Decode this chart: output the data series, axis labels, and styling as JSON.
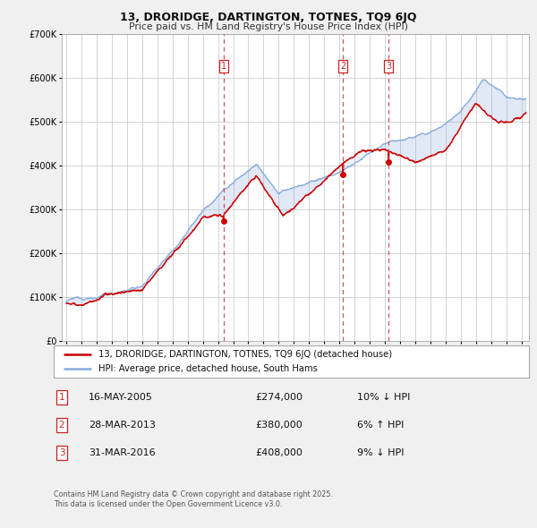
{
  "title": "13, DRORIDGE, DARTINGTON, TOTNES, TQ9 6JQ",
  "subtitle": "Price paid vs. HM Land Registry's House Price Index (HPI)",
  "legend_line1": "13, DRORIDGE, DARTINGTON, TOTNES, TQ9 6JQ (detached house)",
  "legend_line2": "HPI: Average price, detached house, South Hams",
  "footer_line1": "Contains HM Land Registry data © Crown copyright and database right 2025.",
  "footer_line2": "This data is licensed under the Open Government Licence v3.0.",
  "ylim": [
    0,
    700000
  ],
  "yticks": [
    0,
    100000,
    200000,
    300000,
    400000,
    500000,
    600000,
    700000
  ],
  "ytick_labels": [
    "£0",
    "£100K",
    "£200K",
    "£300K",
    "£400K",
    "£500K",
    "£600K",
    "£700K"
  ],
  "xlim_start": 1994.7,
  "xlim_end": 2025.5,
  "sale_color": "#cc0000",
  "hpi_color": "#88aadd",
  "fig_bg_color": "#f0f0f0",
  "plot_bg_color": "#ffffff",
  "grid_color": "#cccccc",
  "marker_color": "#cc0000",
  "vline_color": "#cc4444",
  "transactions": [
    {
      "num": 1,
      "date_x": 2005.37,
      "price": 274000
    },
    {
      "num": 2,
      "date_x": 2013.24,
      "price": 380000
    },
    {
      "num": 3,
      "date_x": 2016.25,
      "price": 408000
    }
  ],
  "table_rows": [
    {
      "num": 1,
      "date": "16-MAY-2005",
      "price": "£274,000",
      "change": "10% ↓ HPI"
    },
    {
      "num": 2,
      "date": "28-MAR-2013",
      "price": "£380,000",
      "change": "6% ↑ HPI"
    },
    {
      "num": 3,
      "date": "31-MAR-2016",
      "price": "£408,000",
      "change": "9% ↓ HPI"
    }
  ]
}
